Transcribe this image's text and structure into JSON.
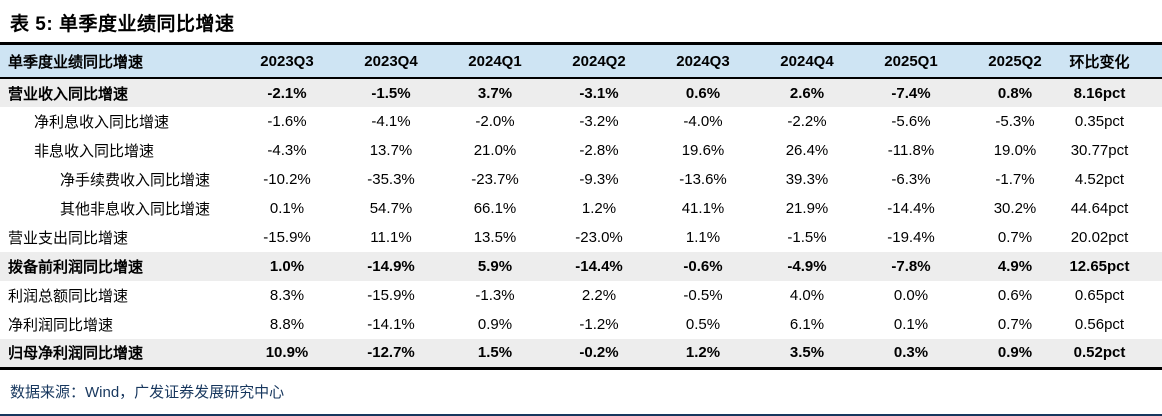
{
  "title": "表 5: 单季度业绩同比增速",
  "table": {
    "columns": [
      "单季度业绩同比增速",
      "2023Q3",
      "2023Q4",
      "2024Q1",
      "2024Q2",
      "2024Q3",
      "2024Q4",
      "2025Q1",
      "2025Q2",
      "环比变化"
    ],
    "rows": [
      {
        "label": "营业收入同比增速",
        "indent": 0,
        "bold": true,
        "shaded": true,
        "values": [
          "-2.1%",
          "-1.5%",
          "3.7%",
          "-3.1%",
          "0.6%",
          "2.6%",
          "-7.4%",
          "0.8%",
          "8.16pct"
        ]
      },
      {
        "label": "净利息收入同比增速",
        "indent": 1,
        "bold": false,
        "shaded": false,
        "values": [
          "-1.6%",
          "-4.1%",
          "-2.0%",
          "-3.2%",
          "-4.0%",
          "-2.2%",
          "-5.6%",
          "-5.3%",
          "0.35pct"
        ]
      },
      {
        "label": "非息收入同比增速",
        "indent": 1,
        "bold": false,
        "shaded": false,
        "values": [
          "-4.3%",
          "13.7%",
          "21.0%",
          "-2.8%",
          "19.6%",
          "26.4%",
          "-11.8%",
          "19.0%",
          "30.77pct"
        ]
      },
      {
        "label": "净手续费收入同比增速",
        "indent": 2,
        "bold": false,
        "shaded": false,
        "values": [
          "-10.2%",
          "-35.3%",
          "-23.7%",
          "-9.3%",
          "-13.6%",
          "39.3%",
          "-6.3%",
          "-1.7%",
          "4.52pct"
        ]
      },
      {
        "label": "其他非息收入同比增速",
        "indent": 2,
        "bold": false,
        "shaded": false,
        "values": [
          "0.1%",
          "54.7%",
          "66.1%",
          "1.2%",
          "41.1%",
          "21.9%",
          "-14.4%",
          "30.2%",
          "44.64pct"
        ]
      },
      {
        "label": "营业支出同比增速",
        "indent": 0,
        "bold": false,
        "shaded": false,
        "values": [
          "-15.9%",
          "11.1%",
          "13.5%",
          "-23.0%",
          "1.1%",
          "-1.5%",
          "-19.4%",
          "0.7%",
          "20.02pct"
        ]
      },
      {
        "label": "拨备前利润同比增速",
        "indent": 0,
        "bold": true,
        "shaded": true,
        "values": [
          "1.0%",
          "-14.9%",
          "5.9%",
          "-14.4%",
          "-0.6%",
          "-4.9%",
          "-7.8%",
          "4.9%",
          "12.65pct"
        ]
      },
      {
        "label": "利润总额同比增速",
        "indent": 0,
        "bold": false,
        "shaded": false,
        "values": [
          "8.3%",
          "-15.9%",
          "-1.3%",
          "2.2%",
          "-0.5%",
          "4.0%",
          "0.0%",
          "0.6%",
          "0.65pct"
        ]
      },
      {
        "label": "净利润同比增速",
        "indent": 0,
        "bold": false,
        "shaded": false,
        "values": [
          "8.8%",
          "-14.1%",
          "0.9%",
          "-1.2%",
          "0.5%",
          "6.1%",
          "0.1%",
          "0.7%",
          "0.56pct"
        ]
      },
      {
        "label": "归母净利润同比增速",
        "indent": 0,
        "bold": true,
        "shaded": true,
        "values": [
          "10.9%",
          "-12.7%",
          "1.5%",
          "-0.2%",
          "1.2%",
          "3.5%",
          "0.3%",
          "0.9%",
          "0.52pct"
        ]
      }
    ]
  },
  "footer": {
    "source": "数据来源：Wind，广发证券发展研究中心"
  },
  "colors": {
    "header_bg": "#CEE4F3",
    "shaded_bg": "#EDEDED",
    "line_dark": "#000000",
    "navy": "#17375E"
  }
}
